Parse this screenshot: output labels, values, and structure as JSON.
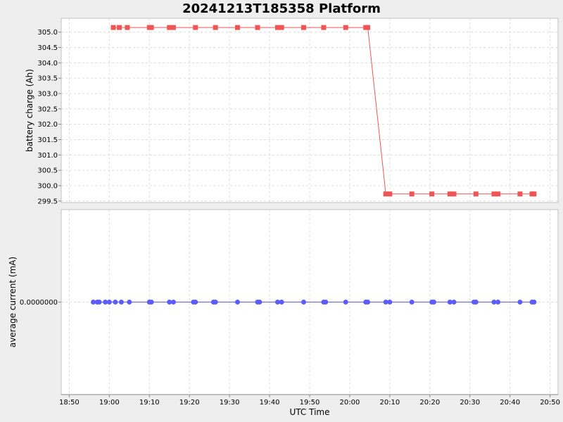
{
  "chart_data": {
    "type": "line",
    "title": "20241213T185358 Platform",
    "xlabel": "UTC Time",
    "x_tick_labels": [
      "18:50",
      "19:00",
      "19:10",
      "19:20",
      "19:30",
      "19:40",
      "19:50",
      "20:00",
      "20:10",
      "20:20",
      "20:30",
      "20:40",
      "20:50"
    ],
    "x_tick_minutes": [
      0,
      10,
      20,
      30,
      40,
      50,
      60,
      70,
      80,
      90,
      100,
      110,
      120
    ],
    "x_range_label": [
      "18:48",
      "20:52"
    ],
    "grid": true,
    "legend": "none",
    "panels": [
      {
        "ylabel": "battery charge (Ah)",
        "ylim": [
          299.45,
          305.45
        ],
        "y_ticks": [
          299.5,
          300.0,
          300.5,
          301.0,
          301.5,
          302.0,
          302.5,
          303.0,
          303.5,
          304.0,
          304.5,
          305.0
        ],
        "y_tick_labels": [
          "299.5",
          "300.0",
          "300.5",
          "301.0",
          "301.5",
          "302.0",
          "302.5",
          "303.0",
          "303.5",
          "304.0",
          "304.5",
          "305.0"
        ],
        "series": [
          {
            "color": "#ef5555",
            "marker": "square",
            "x": [
              "19:01",
              "19:02.5",
              "19:04.5",
              "19:10",
              "19:10.5",
              "19:15",
              "19:16",
              "19:21.5",
              "19:26.5",
              "19:32",
              "19:37",
              "19:42",
              "19:43",
              "19:48.5",
              "19:53.5",
              "19:59",
              "20:04",
              "20:04.5",
              "20:09",
              "20:10",
              "20:15.5",
              "20:20.5",
              "20:25",
              "20:26",
              "20:31.5",
              "20:36",
              "20:37",
              "20:42.5",
              "20:45.5",
              "20:46"
            ],
            "y": [
              305.15,
              305.15,
              305.15,
              305.15,
              305.15,
              305.15,
              305.15,
              305.15,
              305.15,
              305.15,
              305.15,
              305.15,
              305.15,
              305.15,
              305.15,
              305.15,
              305.15,
              305.15,
              299.73,
              299.73,
              299.73,
              299.73,
              299.73,
              299.73,
              299.73,
              299.73,
              299.73,
              299.73,
              299.73,
              299.73
            ]
          }
        ]
      },
      {
        "ylabel": "average current (mA)",
        "ylim": [
          -1,
          1
        ],
        "y_ticks": [
          0
        ],
        "y_tick_labels": [
          "0.0000000"
        ],
        "series": [
          {
            "color": "#5b5bff",
            "marker": "circle",
            "x": [
              "18:56",
              "18:57",
              "18:57.5",
              "18:59",
              "19:00",
              "19:01.5",
              "19:03",
              "19:05",
              "19:10",
              "19:10.5",
              "19:15",
              "19:16",
              "19:21",
              "19:21.5",
              "19:26",
              "19:26.5",
              "19:32",
              "19:37",
              "19:37.5",
              "19:42",
              "19:43",
              "19:48.5",
              "19:53.5",
              "19:54",
              "19:59",
              "20:04",
              "20:04.5",
              "20:09",
              "20:10",
              "20:15.5",
              "20:20.5",
              "20:21",
              "20:25",
              "20:26",
              "20:31",
              "20:31.5",
              "20:36",
              "20:37",
              "20:42.5",
              "20:45.5",
              "20:46"
            ],
            "y": [
              0,
              0,
              0,
              0,
              0,
              0,
              0,
              0,
              0,
              0,
              0,
              0,
              0,
              0,
              0,
              0,
              0,
              0,
              0,
              0,
              0,
              0,
              0,
              0,
              0,
              0,
              0,
              0,
              0,
              0,
              0,
              0,
              0,
              0,
              0,
              0,
              0,
              0,
              0,
              0,
              0
            ]
          }
        ]
      }
    ]
  }
}
